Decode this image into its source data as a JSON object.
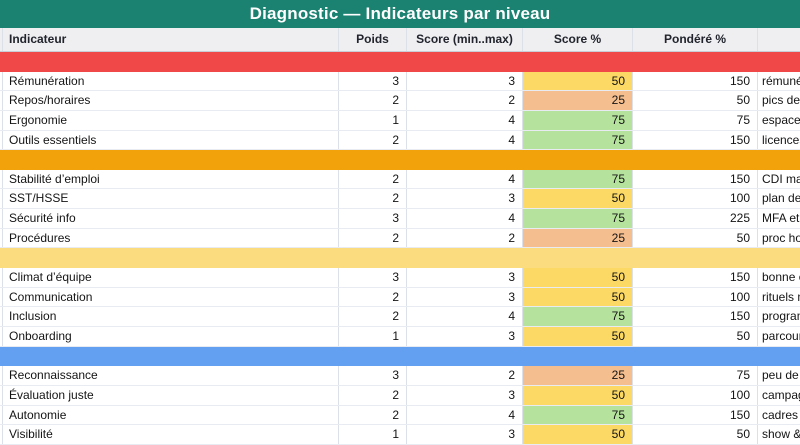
{
  "title": "Diagnostic — Indicateurs par niveau",
  "header": {
    "indicateur": "Indicateur",
    "poids": "Poids",
    "score": "Score (min..max)",
    "score_pct": "Score %",
    "pondere": "Pondéré %",
    "note": ""
  },
  "colors": {
    "titlebar": "#1B8170",
    "header_bg": "#EFEFF2",
    "band_red": "#F04848",
    "band_orange": "#F2A30B",
    "band_yellow": "#FBDD7F",
    "band_blue": "#64A0F2",
    "cell_low": "#F5BE8E",
    "cell_mid": "#FBD964",
    "cell_high": "#B5E29D"
  },
  "score_levels": {
    "low": "25",
    "mid": "50",
    "high": "75"
  },
  "sections": [
    {
      "name": "section-red",
      "band_color_key": "band_red",
      "rows": [
        {
          "indicateur": "Rémunération",
          "poids": "3",
          "score": "3",
          "score_pct": "50",
          "level": "mid",
          "pondere": "150",
          "note": "rémunér"
        },
        {
          "indicateur": "Repos/horaires",
          "poids": "2",
          "score": "2",
          "score_pct": "25",
          "level": "low",
          "pondere": "50",
          "note": "pics de c"
        },
        {
          "indicateur": "Ergonomie",
          "poids": "1",
          "score": "4",
          "score_pct": "75",
          "level": "high",
          "pondere": "75",
          "note": "espaces r"
        },
        {
          "indicateur": "Outils essentiels",
          "poids": "2",
          "score": "4",
          "score_pct": "75",
          "level": "high",
          "pondere": "150",
          "note": "licences"
        }
      ]
    },
    {
      "name": "section-orange",
      "band_color_key": "band_orange",
      "rows": [
        {
          "indicateur": "Stabilité d’emploi",
          "poids": "2",
          "score": "4",
          "score_pct": "75",
          "level": "high",
          "pondere": "150",
          "note": "CDI majo"
        },
        {
          "indicateur": "SST/HSSE",
          "poids": "2",
          "score": "3",
          "score_pct": "50",
          "level": "mid",
          "pondere": "100",
          "note": "plan de p"
        },
        {
          "indicateur": "Sécurité info",
          "poids": "3",
          "score": "4",
          "score_pct": "75",
          "level": "high",
          "pondere": "225",
          "note": "MFA et D"
        },
        {
          "indicateur": "Procédures",
          "poids": "2",
          "score": "2",
          "score_pct": "25",
          "level": "low",
          "pondere": "50",
          "note": "proc hon"
        }
      ]
    },
    {
      "name": "section-yellow",
      "band_color_key": "band_yellow",
      "rows": [
        {
          "indicateur": "Climat d’équipe",
          "poids": "3",
          "score": "3",
          "score_pct": "50",
          "level": "mid",
          "pondere": "150",
          "note": "bonne en"
        },
        {
          "indicateur": "Communication",
          "poids": "2",
          "score": "3",
          "score_pct": "50",
          "level": "mid",
          "pondere": "100",
          "note": "rituels m"
        },
        {
          "indicateur": "Inclusion",
          "poids": "2",
          "score": "4",
          "score_pct": "75",
          "level": "high",
          "pondere": "150",
          "note": "program"
        },
        {
          "indicateur": "Onboarding",
          "poids": "1",
          "score": "3",
          "score_pct": "50",
          "level": "mid",
          "pondere": "50",
          "note": "parcours"
        }
      ]
    },
    {
      "name": "section-blue",
      "band_color_key": "band_blue",
      "rows": [
        {
          "indicateur": "Reconnaissance",
          "poids": "3",
          "score": "2",
          "score_pct": "25",
          "level": "low",
          "pondere": "75",
          "note": "peu de ri"
        },
        {
          "indicateur": "Évaluation juste",
          "poids": "2",
          "score": "3",
          "score_pct": "50",
          "level": "mid",
          "pondere": "100",
          "note": "campagn"
        },
        {
          "indicateur": "Autonomie",
          "poids": "2",
          "score": "4",
          "score_pct": "75",
          "level": "high",
          "pondere": "150",
          "note": "cadres d’"
        },
        {
          "indicateur": "Visibilité",
          "poids": "1",
          "score": "3",
          "score_pct": "50",
          "level": "mid",
          "pondere": "50",
          "note": "show & t"
        }
      ]
    }
  ]
}
